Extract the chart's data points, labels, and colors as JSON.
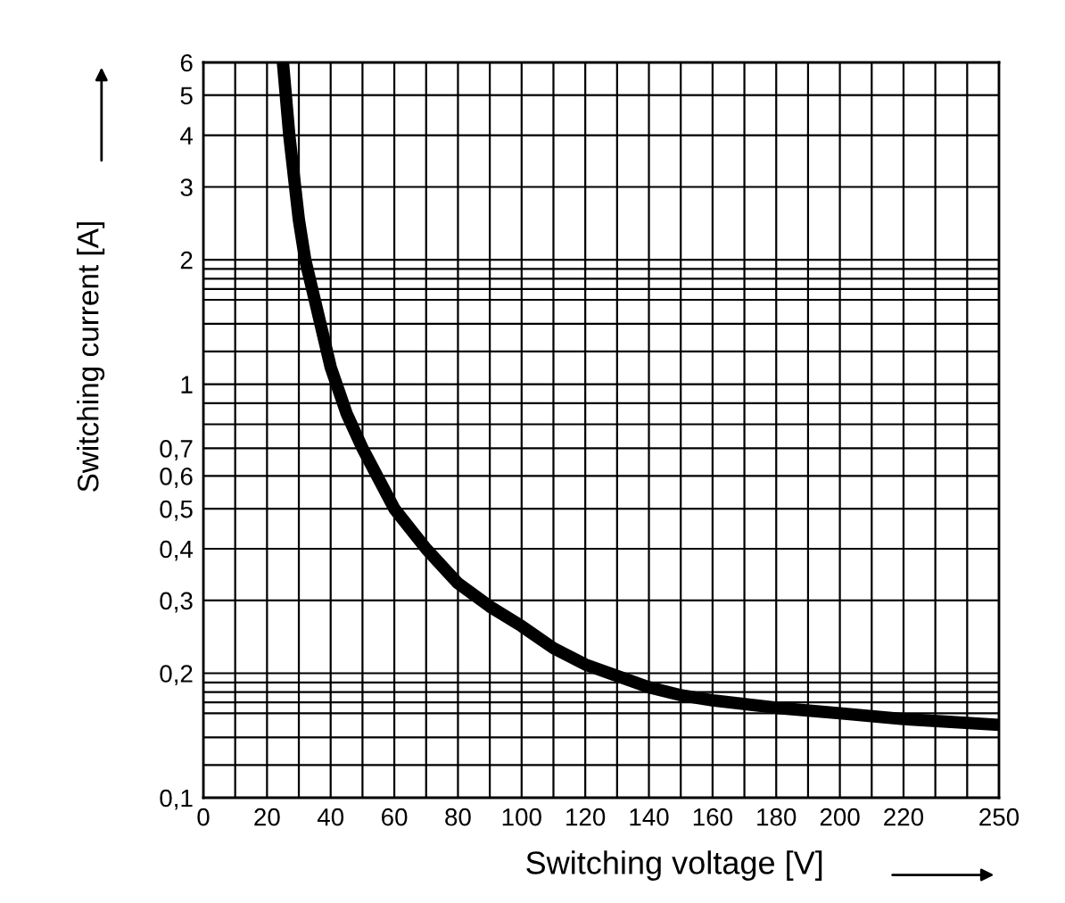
{
  "chart_data": {
    "type": "line",
    "xlabel": "Switching voltage [V]",
    "ylabel": "Switching current [A]",
    "x": [
      25,
      27,
      30,
      32,
      35,
      40,
      45,
      50,
      60,
      70,
      80,
      90,
      100,
      110,
      120,
      130,
      140,
      150,
      160,
      180,
      200,
      220,
      250
    ],
    "series": [
      {
        "color": "#000000",
        "values": [
          6,
          4,
          2.5,
          2.0,
          1.6,
          1.1,
          0.85,
          0.7,
          0.5,
          0.4,
          0.33,
          0.29,
          0.26,
          0.23,
          0.21,
          0.197,
          0.185,
          0.177,
          0.172,
          0.165,
          0.16,
          0.155,
          0.15
        ]
      }
    ],
    "log": "y",
    "xlim": [
      0,
      250
    ],
    "ylim": [
      0.1,
      6
    ],
    "xticks": [
      0,
      {
        "value": 10,
        "label": null
      },
      20,
      {
        "value": 30,
        "label": null
      },
      40,
      {
        "value": 50,
        "label": null
      },
      60,
      {
        "value": 70,
        "label": null
      },
      80,
      {
        "value": 90,
        "label": null
      },
      100,
      {
        "value": 110,
        "label": null
      },
      120,
      {
        "value": 130,
        "label": null
      },
      140,
      {
        "value": 150,
        "label": null
      },
      160,
      {
        "value": 170,
        "label": null
      },
      180,
      {
        "value": 190,
        "label": null
      },
      200,
      {
        "value": 210,
        "label": null
      },
      220,
      {
        "value": 230,
        "label": null
      },
      {
        "value": 240,
        "label": null
      },
      250
    ],
    "yticks": [
      {
        "value": 0.1,
        "label": "0,1"
      },
      {
        "value": 0.12,
        "label": null
      },
      {
        "value": 0.14,
        "label": null
      },
      {
        "value": 0.16,
        "label": null
      },
      {
        "value": 0.17,
        "label": null
      },
      {
        "value": 0.18,
        "label": null
      },
      {
        "value": 0.19,
        "label": null
      },
      {
        "value": 0.2,
        "label": "0,2"
      },
      {
        "value": 0.3,
        "label": "0,3"
      },
      {
        "value": 0.4,
        "label": "0,4"
      },
      {
        "value": 0.5,
        "label": "0,5"
      },
      {
        "value": 0.6,
        "label": "0,6"
      },
      {
        "value": 0.7,
        "label": "0,7"
      },
      {
        "value": 0.8,
        "label": null
      },
      {
        "value": 0.9,
        "label": null
      },
      1,
      {
        "value": 1.2,
        "label": null
      },
      {
        "value": 1.4,
        "label": null
      },
      {
        "value": 1.6,
        "label": null
      },
      {
        "value": 1.7,
        "label": null
      },
      {
        "value": 1.8,
        "label": null
      },
      {
        "value": 1.9,
        "label": null
      },
      2,
      3,
      4,
      5,
      6
    ],
    "grid": true,
    "marker": "none",
    "line_style": "solid",
    "legend": false
  }
}
